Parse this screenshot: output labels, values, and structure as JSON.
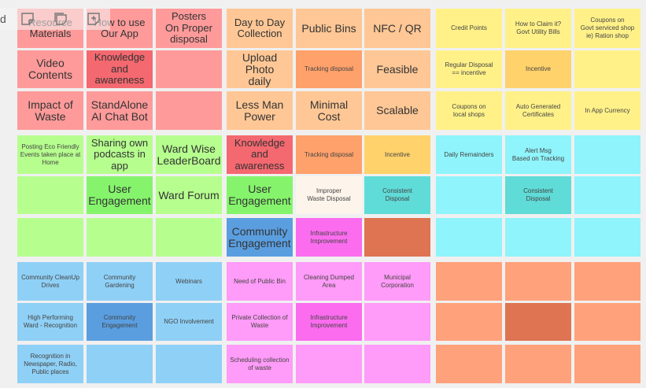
{
  "board": {
    "colors": {
      "salmon": "#ff9a9a",
      "red": "#f4686f",
      "green": "#b6ff8e",
      "green_dark": "#85f46c",
      "blue_light": "#8fd0f6",
      "blue": "#5a9ee0",
      "peach": "#ffc795",
      "orange": "#ffa16b",
      "yellow": "#fff188",
      "amber": "#ffd26b",
      "cyan": "#8ff4fb",
      "teal": "#5fdcd8",
      "pink": "#ff9bf8",
      "magenta": "#fb6cef",
      "coral": "#ffa17b",
      "rust": "#de7451",
      "white_note": "#fdf5ec"
    },
    "notes": [
      {
        "text": "Resource\nMaterials",
        "color": "salmon"
      },
      {
        "text": "How to use\nOur App",
        "color": "salmon"
      },
      {
        "text": "Posters\nOn Proper\ndisposal",
        "color": "salmon"
      },
      {
        "text": "Day to Day\nCollection",
        "color": "peach"
      },
      {
        "text": "Public Bins",
        "color": "peach"
      },
      {
        "text": "NFC / QR",
        "color": "peach"
      },
      {
        "text": "Credit Points",
        "color": "yellow"
      },
      {
        "text": "How to Claim it?\nGovt Utility Bills",
        "color": "yellow"
      },
      {
        "text": "Coupons on\nGovt serviced shop\nie) Ration shop",
        "color": "yellow"
      },
      {
        "text": "Video\nContents",
        "color": "salmon"
      },
      {
        "text": "Knowledge\nand\nawareness",
        "color": "red"
      },
      {
        "text": "",
        "color": "salmon"
      },
      {
        "text": "Upload Photo\ndaily",
        "color": "peach"
      },
      {
        "text": "Tracking disposal",
        "color": "orange"
      },
      {
        "text": "Feasible",
        "color": "peach"
      },
      {
        "text": "Regular Disposal\n== incentive",
        "color": "yellow"
      },
      {
        "text": "Incentive",
        "color": "amber"
      },
      {
        "text": "",
        "color": "yellow"
      },
      {
        "text": "Impact of\nWaste",
        "color": "salmon"
      },
      {
        "text": "StandAlone\nAI Chat Bot",
        "color": "salmon"
      },
      {
        "text": "",
        "color": "salmon"
      },
      {
        "text": "Less Man\nPower",
        "color": "peach"
      },
      {
        "text": "Minimal Cost",
        "color": "peach"
      },
      {
        "text": "Scalable",
        "color": "peach"
      },
      {
        "text": "Coupons on\nlocal shops",
        "color": "yellow"
      },
      {
        "text": "Auto Generated\nCertificates",
        "color": "yellow"
      },
      {
        "text": "In App Currency",
        "color": "yellow"
      },
      {
        "text": "Posting Eco Friendly\nEvents taken place at\nHome",
        "color": "green"
      },
      {
        "text": "Sharing own\npodcasts in\napp",
        "color": "green"
      },
      {
        "text": "Ward Wise\nLeaderBoard",
        "color": "green"
      },
      {
        "text": "Knowledge\nand\nawareness",
        "color": "red"
      },
      {
        "text": "Tracking disposal",
        "color": "orange"
      },
      {
        "text": "Incentive",
        "color": "amber"
      },
      {
        "text": "Daily Remainders",
        "color": "cyan"
      },
      {
        "text": "Alert Msg\nBased on Tracking",
        "color": "cyan"
      },
      {
        "text": "",
        "color": "cyan"
      },
      {
        "text": "",
        "color": "green"
      },
      {
        "text": "User\nEngagement",
        "color": "green_dark"
      },
      {
        "text": "Ward Forum",
        "color": "green"
      },
      {
        "text": "User\nEngagement",
        "color": "green_dark"
      },
      {
        "text": "Improper\nWaste Disposal",
        "color": "white_note"
      },
      {
        "text": "Consistent\nDisposal",
        "color": "teal"
      },
      {
        "text": "",
        "color": "cyan"
      },
      {
        "text": "Consistent\nDisposal",
        "color": "teal"
      },
      {
        "text": "",
        "color": "cyan"
      },
      {
        "text": "",
        "color": "green"
      },
      {
        "text": "",
        "color": "green"
      },
      {
        "text": "",
        "color": "green"
      },
      {
        "text": "Community\nEngagement",
        "color": "blue"
      },
      {
        "text": "Infrastructure\nImprovement",
        "color": "magenta"
      },
      {
        "text": "",
        "color": "rust"
      },
      {
        "text": "",
        "color": "cyan"
      },
      {
        "text": "",
        "color": "cyan"
      },
      {
        "text": "",
        "color": "cyan"
      },
      {
        "text": "Community CleanUp\nDrives",
        "color": "blue_light"
      },
      {
        "text": "Community\nGardening",
        "color": "blue_light"
      },
      {
        "text": "Webinars",
        "color": "blue_light"
      },
      {
        "text": "Need of Public Bin",
        "color": "pink"
      },
      {
        "text": "Cleaning Dumped\nArea",
        "color": "pink"
      },
      {
        "text": "Municipal\nCorporation",
        "color": "pink"
      },
      {
        "text": "",
        "color": "coral"
      },
      {
        "text": "",
        "color": "coral"
      },
      {
        "text": "",
        "color": "coral"
      },
      {
        "text": "High Performing\nWard - Recognition",
        "color": "blue_light"
      },
      {
        "text": "Community\nEngagement",
        "color": "blue"
      },
      {
        "text": "NGO Involvement",
        "color": "blue_light"
      },
      {
        "text": "Private Collection of\nWaste",
        "color": "pink"
      },
      {
        "text": "Infrastructure\nImprovement",
        "color": "magenta"
      },
      {
        "text": "",
        "color": "pink"
      },
      {
        "text": "",
        "color": "coral"
      },
      {
        "text": "",
        "color": "rust"
      },
      {
        "text": "",
        "color": "coral"
      },
      {
        "text": "Recognition in\nNewspaper, Radio,\nPublic places",
        "color": "blue_light"
      },
      {
        "text": "",
        "color": "blue_light"
      },
      {
        "text": "",
        "color": "blue_light"
      },
      {
        "text": "Scheduling collection\nof waste",
        "color": "pink"
      },
      {
        "text": "",
        "color": "pink"
      },
      {
        "text": "",
        "color": "pink"
      },
      {
        "text": "",
        "color": "coral"
      },
      {
        "text": "",
        "color": "coral"
      },
      {
        "text": "",
        "color": "coral"
      }
    ]
  },
  "toolbar": {
    "partial_text": "d",
    "icons": [
      "sticky-note-icon",
      "sticky-note-stack-icon",
      "sticky-note-add-icon"
    ]
  }
}
